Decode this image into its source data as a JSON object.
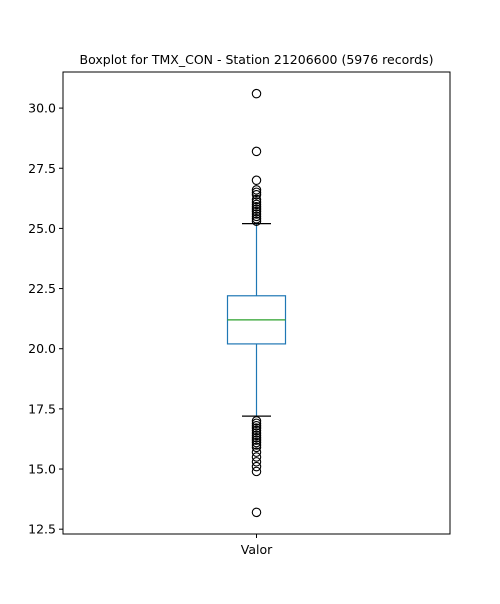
{
  "chart_data": {
    "type": "boxplot",
    "title": "Boxplot for TMX_CON - Station 21206600 (5976 records)",
    "xlabel": "",
    "ylabel": "",
    "categories": [
      "Valor"
    ],
    "ylim": [
      12.3,
      31.5
    ],
    "y_ticks": [
      12.5,
      15.0,
      17.5,
      20.0,
      22.5,
      25.0,
      27.5,
      30.0
    ],
    "y_tick_labels": [
      "12.5",
      "15.0",
      "17.5",
      "20.0",
      "22.5",
      "25.0",
      "27.5",
      "30.0"
    ],
    "grid": false,
    "legend": "none",
    "box": {
      "q1": 20.2,
      "median": 21.2,
      "q3": 22.2,
      "whisker_low": 17.2,
      "whisker_high": 25.2
    },
    "outliers": [
      30.6,
      28.2,
      27.0,
      26.6,
      26.5,
      26.4,
      26.2,
      26.1,
      26.0,
      25.9,
      25.8,
      25.7,
      25.6,
      25.5,
      25.4,
      25.3,
      17.0,
      16.9,
      16.8,
      16.7,
      16.6,
      16.5,
      16.4,
      16.3,
      16.2,
      16.1,
      16.0,
      15.9,
      15.7,
      15.5,
      15.3,
      15.1,
      14.9,
      13.2
    ],
    "colors": {
      "box": "#1f77b4",
      "median": "#2ca02c",
      "whisker_cap": "#000000",
      "outlier": "#000000",
      "axes": "#000000"
    }
  }
}
